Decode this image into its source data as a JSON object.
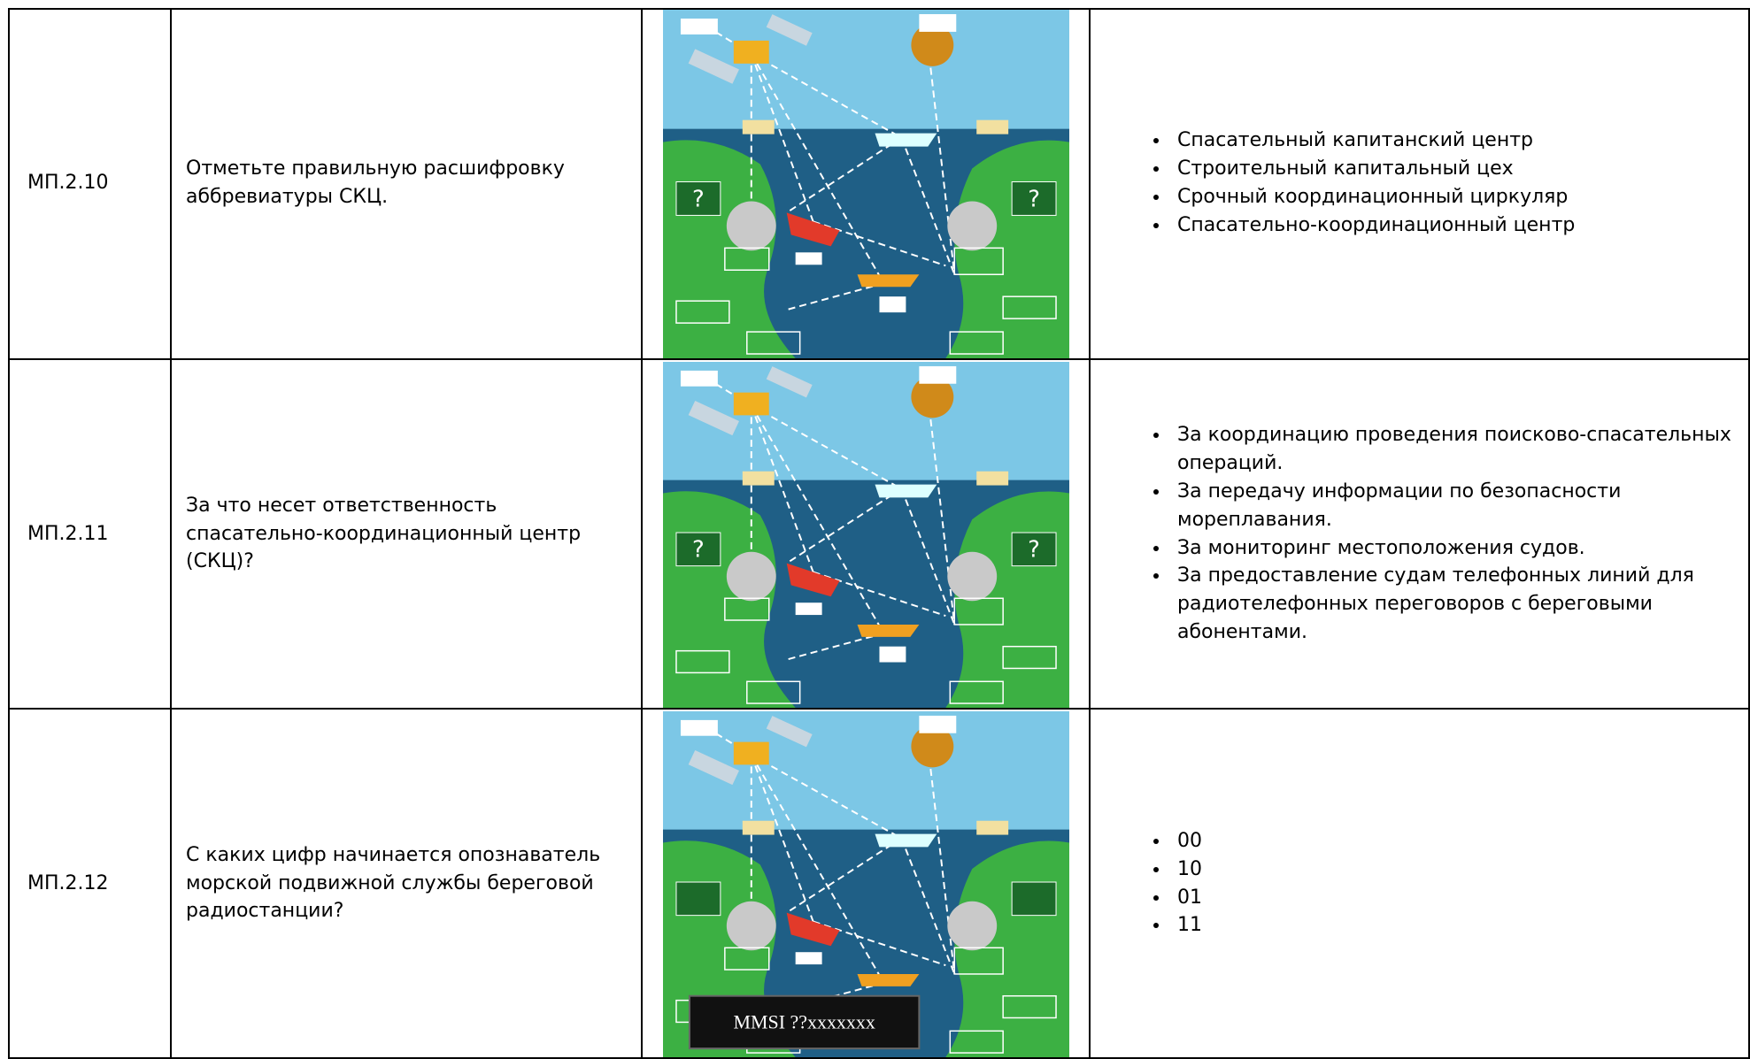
{
  "table": {
    "rows": [
      {
        "code": "МП.2.10",
        "question": "Отметьте правильную расшифровку аббревиатуры СКЦ.",
        "image_marks": [
          "?",
          "?"
        ],
        "options": [
          "Спасательный капитанский центр",
          "Строительный капитальный цех",
          "Срочный координационный циркуляр",
          "Спасательно-координационный центр"
        ]
      },
      {
        "code": "МП.2.11",
        "question": "За что несет ответственность спасательно-координационный центр (СКЦ)?",
        "image_marks": [
          "?",
          "?"
        ],
        "options": [
          "За координацию проведения поисково-спасательных операций.",
          "За передачу информации по безопасности мореплавания.",
          "За мониторинг местоположения судов.",
          "За предоставление судам телефонных линий для радиотелефонных переговоров с береговыми абонентами."
        ]
      },
      {
        "code": "МП.2.12",
        "question": "С каких цифр начинается опознаватель морской подвижной службы береговой радиостанции?",
        "image_plate": "MMSI ??xxxxxxx",
        "options": [
          "00",
          "10",
          "01",
          "11"
        ]
      }
    ]
  }
}
